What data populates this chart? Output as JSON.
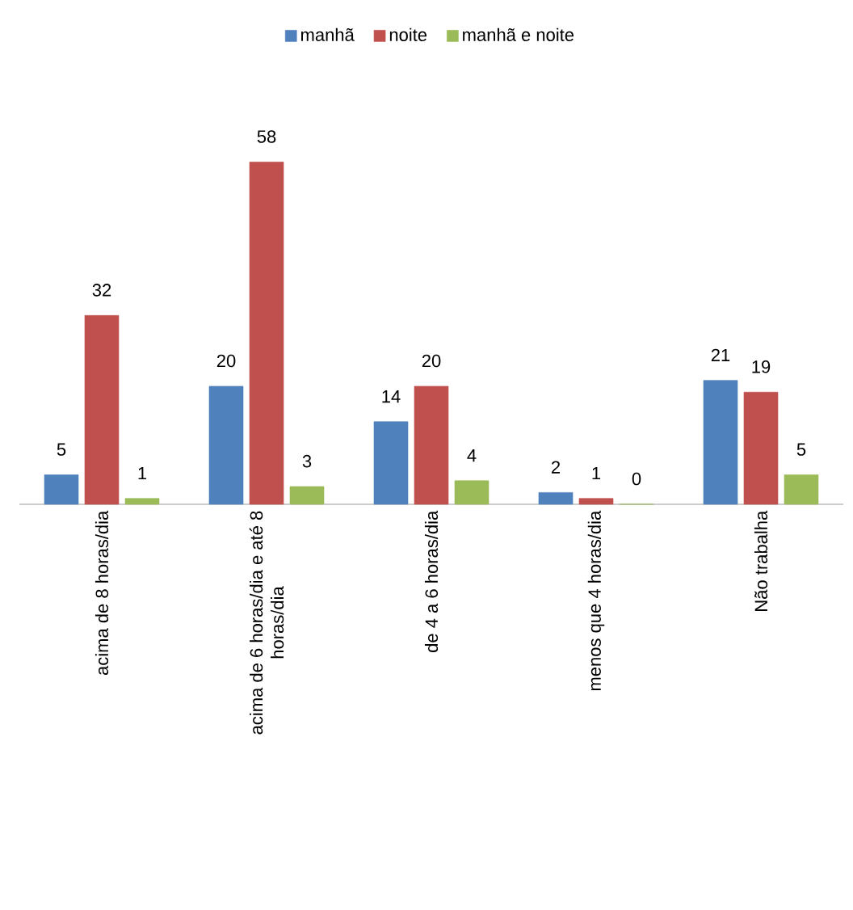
{
  "chart_data": {
    "type": "bar",
    "legend": "top",
    "data_labels": true,
    "categories": [
      "acima de 8 horas/dia",
      "acima de 6 horas/dia e até 8 horas/dia",
      "de 4 a 6 horas/dia",
      "menos que 4 horas/dia",
      "Não trabalha"
    ],
    "series": [
      {
        "name": "manhã",
        "color": "#4f81bd",
        "values": [
          5,
          20,
          14,
          2,
          21
        ]
      },
      {
        "name": "noite",
        "color": "#c0504d",
        "values": [
          32,
          58,
          20,
          1,
          19
        ]
      },
      {
        "name": "manhã e noite",
        "color": "#9bbb59",
        "values": [
          1,
          3,
          4,
          0,
          5
        ]
      }
    ]
  }
}
